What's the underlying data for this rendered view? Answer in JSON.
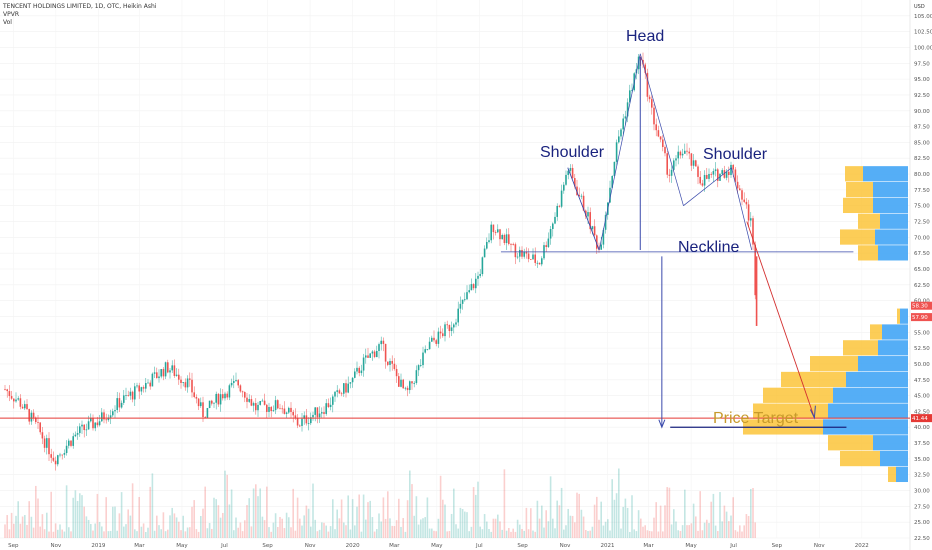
{
  "header": {
    "title": "TENCENT HOLDINGS LIMITED, 1D, OTC, Heikin Ashi",
    "vpvr": "VPVR",
    "vol": "Vol"
  },
  "top_right": "USD",
  "colors": {
    "up": "#26a69a",
    "down": "#ef5350",
    "annotation": "#1a237e",
    "target_line": "#e53935",
    "vp_up": "#42a5f5",
    "vp_down": "#fbc02d",
    "price_target_text": "#c79a2b"
  },
  "chart_data": {
    "type": "candlestick",
    "title": "TENCENT HOLDINGS LIMITED, 1D, OTC, Heikin Ashi",
    "y_range": [
      22.5,
      107.5
    ],
    "y_ticks": [
      "105.00",
      "102.50",
      "100.00",
      "97.50",
      "95.00",
      "92.50",
      "90.00",
      "87.50",
      "85.00",
      "82.50",
      "80.00",
      "77.50",
      "75.00",
      "72.50",
      "70.00",
      "67.50",
      "65.00",
      "62.50",
      "60.00",
      "57.50",
      "55.00",
      "52.50",
      "50.00",
      "47.50",
      "45.00",
      "42.50",
      "40.00",
      "37.50",
      "35.00",
      "32.50",
      "30.00",
      "27.50",
      "25.00",
      "22.50"
    ],
    "x_ticks": [
      "Sep",
      "Nov",
      "2019",
      "Mar",
      "May",
      "Jul",
      "Sep",
      "Nov",
      "2020",
      "Mar",
      "May",
      "Jul",
      "Sep",
      "Nov",
      "2021",
      "Mar",
      "May",
      "Jul",
      "Sep",
      "Nov",
      "2022"
    ],
    "price_path": [
      {
        "date": "2018-08-20",
        "price": 46
      },
      {
        "date": "2018-09-10",
        "price": 44
      },
      {
        "date": "2018-10-05",
        "price": 40
      },
      {
        "date": "2018-10-30",
        "price": 35
      },
      {
        "date": "2018-12-01",
        "price": 39
      },
      {
        "date": "2019-01-01",
        "price": 41
      },
      {
        "date": "2019-02-01",
        "price": 44
      },
      {
        "date": "2019-03-01",
        "price": 46
      },
      {
        "date": "2019-04-10",
        "price": 49.5
      },
      {
        "date": "2019-05-10",
        "price": 47
      },
      {
        "date": "2019-06-01",
        "price": 42
      },
      {
        "date": "2019-06-25",
        "price": 45
      },
      {
        "date": "2019-07-20",
        "price": 47
      },
      {
        "date": "2019-08-15",
        "price": 43
      },
      {
        "date": "2019-09-20",
        "price": 43.5
      },
      {
        "date": "2019-10-15",
        "price": 40.5
      },
      {
        "date": "2019-11-20",
        "price": 43
      },
      {
        "date": "2019-12-30",
        "price": 47
      },
      {
        "date": "2020-01-15",
        "price": 50
      },
      {
        "date": "2020-02-10",
        "price": 53
      },
      {
        "date": "2020-03-18",
        "price": 45
      },
      {
        "date": "2020-04-20",
        "price": 53
      },
      {
        "date": "2020-05-20",
        "price": 56
      },
      {
        "date": "2020-06-30",
        "price": 64
      },
      {
        "date": "2020-07-20",
        "price": 72
      },
      {
        "date": "2020-08-20",
        "price": 68
      },
      {
        "date": "2020-09-25",
        "price": 66
      },
      {
        "date": "2020-10-25",
        "price": 76
      },
      {
        "date": "2020-11-05",
        "price": 81
      },
      {
        "date": "2020-12-01",
        "price": 74
      },
      {
        "date": "2020-12-20",
        "price": 68
      },
      {
        "date": "2021-01-15",
        "price": 85
      },
      {
        "date": "2021-02-17",
        "price": 99
      },
      {
        "date": "2021-03-05",
        "price": 90
      },
      {
        "date": "2021-03-30",
        "price": 80
      },
      {
        "date": "2021-04-20",
        "price": 84
      },
      {
        "date": "2021-05-15",
        "price": 79
      },
      {
        "date": "2021-06-10",
        "price": 80
      },
      {
        "date": "2021-06-28",
        "price": 81
      },
      {
        "date": "2021-07-15",
        "price": 76
      },
      {
        "date": "2021-07-27",
        "price": 72
      },
      {
        "date": "2021-08-03",
        "price": 57.9
      }
    ],
    "volume_profile": [
      {
        "price": 80,
        "up": 0.18,
        "down": 0.45
      },
      {
        "price": 77.5,
        "up": 0.27,
        "down": 0.35
      },
      {
        "price": 75,
        "up": 0.3,
        "down": 0.35
      },
      {
        "price": 72.5,
        "up": 0.22,
        "down": 0.28
      },
      {
        "price": 70,
        "up": 0.35,
        "down": 0.33
      },
      {
        "price": 67.5,
        "up": 0.2,
        "down": 0.3
      },
      {
        "price": 57.5,
        "up": 0.03,
        "down": 0.08
      },
      {
        "price": 55,
        "up": 0.12,
        "down": 0.26
      },
      {
        "price": 52.5,
        "up": 0.35,
        "down": 0.3
      },
      {
        "price": 50,
        "up": 0.48,
        "down": 0.5
      },
      {
        "price": 47.5,
        "up": 0.65,
        "down": 0.62
      },
      {
        "price": 45,
        "up": 0.7,
        "down": 0.75
      },
      {
        "price": 42.5,
        "up": 0.75,
        "down": 0.8
      },
      {
        "price": 40,
        "up": 0.8,
        "down": 0.85
      },
      {
        "price": 37.5,
        "up": 0.45,
        "down": 0.35
      },
      {
        "price": 35,
        "up": 0.4,
        "down": 0.28
      },
      {
        "price": 32.5,
        "up": 0.08,
        "down": 0.12
      }
    ],
    "current_price_labels": [
      "58.30",
      "57.90"
    ],
    "target_price_label": "41.44",
    "target_price": 41.44,
    "neckline_price": 67.7,
    "annotations": {
      "head": "Head",
      "shoulder_left": "Shoulder",
      "shoulder_right": "Shoulder",
      "neckline": "Neckline",
      "price_target": "Price Target"
    }
  }
}
